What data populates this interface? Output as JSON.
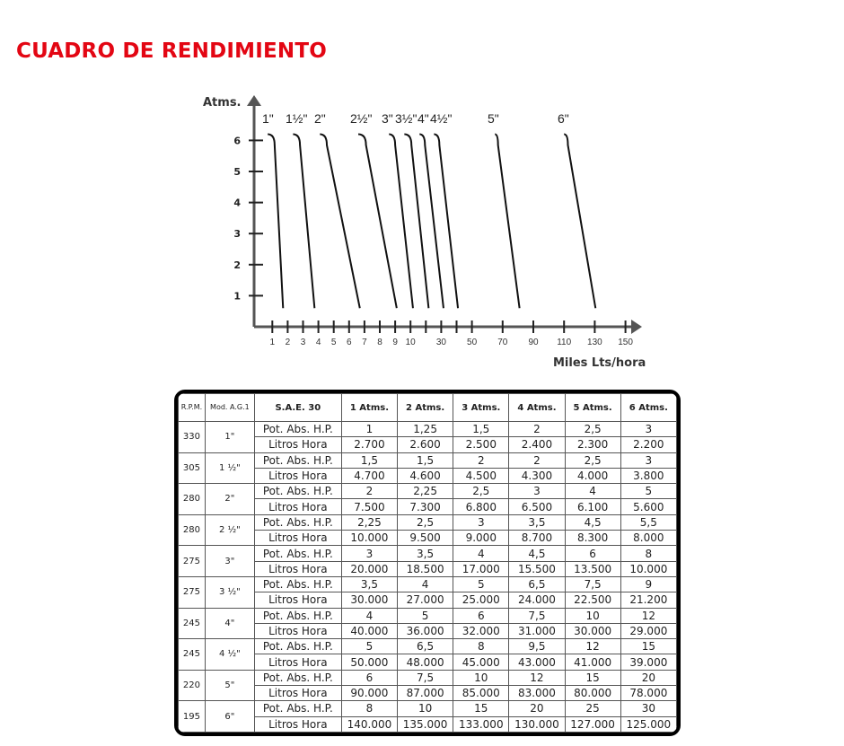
{
  "title": "CUADRO DE RENDIMIENTO",
  "chart_data": {
    "type": "line",
    "ylabel": "Atms.",
    "xlabel": "Miles Lts/hora",
    "yticks": [
      1,
      2,
      3,
      4,
      5,
      6
    ],
    "xticks": [
      1,
      2,
      3,
      4,
      5,
      6,
      7,
      8,
      9,
      10,
      20,
      30,
      40,
      50,
      70,
      90,
      110,
      130,
      150
    ],
    "xtick_labels": [
      "1",
      "2",
      "3",
      "4",
      "5",
      "6",
      "7",
      "8",
      "9",
      "10",
      "",
      "30",
      "",
      "50",
      "70",
      "90",
      "110",
      "130",
      "150"
    ],
    "x_scale": "piecewise: 1-10 step 1, then 10-150 step 10 at equal spacing",
    "grid": false,
    "series": [
      {
        "name": "1\"",
        "points": [
          [
            0.7,
            6.2
          ],
          [
            1.15,
            5.85
          ],
          [
            1.7,
            0.6
          ]
        ]
      },
      {
        "name": "1½\"",
        "points": [
          [
            2.35,
            6.2
          ],
          [
            2.8,
            5.85
          ],
          [
            3.75,
            0.6
          ]
        ]
      },
      {
        "name": "2\"",
        "points": [
          [
            4.1,
            6.2
          ],
          [
            4.55,
            5.85
          ],
          [
            6.7,
            0.6
          ]
        ]
      },
      {
        "name": "2½\"",
        "points": [
          [
            6.6,
            6.2
          ],
          [
            7.1,
            5.85
          ],
          [
            9.1,
            0.6
          ]
        ]
      },
      {
        "name": "3\"",
        "points": [
          [
            8.6,
            6.2
          ],
          [
            9.0,
            5.85
          ],
          [
            11.6,
            0.6
          ]
        ]
      },
      {
        "name": "3½\"",
        "points": [
          [
            9.6,
            6.2
          ],
          [
            10.6,
            5.85
          ],
          [
            21.8,
            0.6
          ]
        ]
      },
      {
        "name": "4\"",
        "points": [
          [
            15.9,
            6.2
          ],
          [
            19.4,
            5.85
          ],
          [
            31.5,
            0.6
          ]
        ]
      },
      {
        "name": "4½\"",
        "points": [
          [
            25.3,
            6.2
          ],
          [
            28.8,
            5.85
          ],
          [
            40.9,
            0.6
          ]
        ]
      },
      {
        "name": "5\"",
        "points": [
          [
            65,
            6.2
          ],
          [
            67,
            5.85
          ],
          [
            81,
            0.6
          ]
        ]
      },
      {
        "name": "6\"",
        "points": [
          [
            110,
            6.2
          ],
          [
            112.5,
            5.85
          ],
          [
            130.5,
            0.6
          ]
        ]
      }
    ]
  },
  "table": {
    "headers": [
      "R.P.M.",
      "Mod. A.G.1",
      "S.A.E. 30",
      "1 Atms.",
      "2 Atms.",
      "3 Atms.",
      "4 Atms.",
      "5 Atms.",
      "6 Atms."
    ],
    "row_labels": [
      "Pot. Abs. H.P.",
      "Litros Hora"
    ],
    "groups": [
      {
        "rpm": "330",
        "mod": "1\"",
        "hp": [
          "1",
          "1,25",
          "1,5",
          "2",
          "2,5",
          "3"
        ],
        "litros": [
          "2.700",
          "2.600",
          "2.500",
          "2.400",
          "2.300",
          "2.200"
        ]
      },
      {
        "rpm": "305",
        "mod": "1 ½\"",
        "hp": [
          "1,5",
          "1,5",
          "2",
          "2",
          "2,5",
          "3"
        ],
        "litros": [
          "4.700",
          "4.600",
          "4.500",
          "4.300",
          "4.000",
          "3.800"
        ]
      },
      {
        "rpm": "280",
        "mod": "2\"",
        "hp": [
          "2",
          "2,25",
          "2,5",
          "3",
          "4",
          "5"
        ],
        "litros": [
          "7.500",
          "7.300",
          "6.800",
          "6.500",
          "6.100",
          "5.600"
        ]
      },
      {
        "rpm": "280",
        "mod": "2 ½\"",
        "hp": [
          "2,25",
          "2,5",
          "3",
          "3,5",
          "4,5",
          "5,5"
        ],
        "litros": [
          "10.000",
          "9.500",
          "9.000",
          "8.700",
          "8.300",
          "8.000"
        ]
      },
      {
        "rpm": "275",
        "mod": "3\"",
        "hp": [
          "3",
          "3,5",
          "4",
          "4,5",
          "6",
          "8"
        ],
        "litros": [
          "20.000",
          "18.500",
          "17.000",
          "15.500",
          "13.500",
          "10.000"
        ]
      },
      {
        "rpm": "275",
        "mod": "3 ½\"",
        "hp": [
          "3,5",
          "4",
          "5",
          "6,5",
          "7,5",
          "9"
        ],
        "litros": [
          "30.000",
          "27.000",
          "25.000",
          "24.000",
          "22.500",
          "21.200"
        ]
      },
      {
        "rpm": "245",
        "mod": "4\"",
        "hp": [
          "4",
          "5",
          "6",
          "7,5",
          "10",
          "12"
        ],
        "litros": [
          "40.000",
          "36.000",
          "32.000",
          "31.000",
          "30.000",
          "29.000"
        ]
      },
      {
        "rpm": "245",
        "mod": "4 ½\"",
        "hp": [
          "5",
          "6,5",
          "8",
          "9,5",
          "12",
          "15"
        ],
        "litros": [
          "50.000",
          "48.000",
          "45.000",
          "43.000",
          "41.000",
          "39.000"
        ]
      },
      {
        "rpm": "220",
        "mod": "5\"",
        "hp": [
          "6",
          "7,5",
          "10",
          "12",
          "15",
          "20"
        ],
        "litros": [
          "90.000",
          "87.000",
          "85.000",
          "83.000",
          "80.000",
          "78.000"
        ]
      },
      {
        "rpm": "195",
        "mod": "6\"",
        "hp": [
          "8",
          "10",
          "15",
          "20",
          "25",
          "30"
        ],
        "litros": [
          "140.000",
          "135.000",
          "133.000",
          "130.000",
          "127.000",
          "125.000"
        ]
      }
    ]
  }
}
